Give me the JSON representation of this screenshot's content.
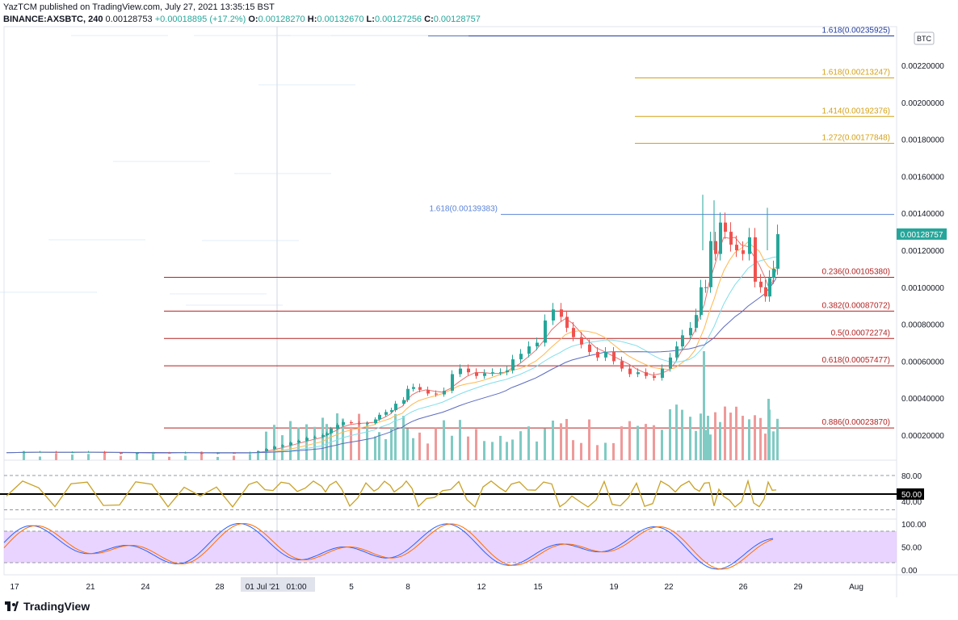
{
  "header": {
    "line1": "YazTCM published on TradingView.com, July 27, 2021 13:35:15 BST",
    "symbol": "BINANCE:AXSBTC, 240",
    "last": "0.00128753",
    "change": "+0.00018895 (+17.2%)",
    "o_label": "O:",
    "o": "0.00128270",
    "h_label": "H:",
    "h": "0.00132670",
    "l_label": "L:",
    "l": "0.00127256",
    "c_label": "C:",
    "c": "0.00128757"
  },
  "currency_badge": "BTC",
  "footer": {
    "logo_text": "TradingView"
  },
  "chart_data": [
    {
      "type": "candlestick",
      "title": "BINANCE:AXSBTC, 240",
      "y_axis_labels": [
        "0.00220000",
        "0.00200000",
        "0.00180000",
        "0.00160000",
        "0.00140000",
        "0.00120000",
        "0.00100000",
        "0.00080000",
        "0.00060000",
        "0.00040000",
        "0.00020000"
      ],
      "ylim": [
        0.0,
        0.00236
      ],
      "x_tick_labels": [
        "17",
        "21",
        "24",
        "28",
        "01 Jul '21",
        "01:00",
        "5",
        "8",
        "12",
        "15",
        "19",
        "22",
        "26",
        "29",
        "Aug"
      ],
      "last_price_label": "0.00128757",
      "fib_levels": [
        {
          "label": "1.618(0.00235925)",
          "value": 0.00235925,
          "color": "#1e3a9e"
        },
        {
          "label": "1.618(0.00213247)",
          "value": 0.00213247,
          "color": "#d4a017"
        },
        {
          "label": "1.414(0.00192376)",
          "value": 0.00192376,
          "color": "#d4a017"
        },
        {
          "label": "1.272(0.00177848)",
          "value": 0.00177848,
          "color": "#d4a017"
        },
        {
          "label": "1.618(0.00139383)",
          "value": 0.00139383,
          "color": "#5b84d6"
        },
        {
          "label": "0.236(0.00105380)",
          "value": 0.0010538,
          "color": "#b22222"
        },
        {
          "label": "0.382(0.00087072)",
          "value": 0.00087072,
          "color": "#b22222"
        },
        {
          "label": "0.5(0.00072274)",
          "value": 0.00072274,
          "color": "#b22222"
        },
        {
          "label": "0.618(0.00057477)",
          "value": 0.00057477,
          "color": "#b22222"
        },
        {
          "label": "0.886(0.00023870)",
          "value": 0.0002387,
          "color": "#b22222"
        }
      ],
      "price_path": [
        [
          0,
          0.000105
        ],
        [
          20,
          0.000108
        ],
        [
          40,
          0.00011
        ],
        [
          60,
          0.000106
        ],
        [
          80,
          0.000108
        ],
        [
          100,
          0.00011
        ],
        [
          120,
          0.000104
        ],
        [
          140,
          0.0001
        ],
        [
          160,
          0.000104
        ],
        [
          180,
          0.000105
        ],
        [
          200,
          0.000103
        ],
        [
          220,
          0.000106
        ],
        [
          240,
          0.0001
        ],
        [
          260,
          0.000104
        ],
        [
          280,
          0.000102
        ],
        [
          300,
          0.000106
        ],
        [
          310,
          0.000112
        ],
        [
          320,
          0.000125
        ],
        [
          330,
          0.000138
        ],
        [
          340,
          0.000145
        ],
        [
          350,
          0.00016
        ],
        [
          360,
          0.00017
        ],
        [
          370,
          0.000185
        ],
        [
          380,
          0.00019
        ],
        [
          390,
          0.0002
        ],
        [
          395,
          0.00021
        ],
        [
          400,
          0.000235
        ],
        [
          408,
          0.000255
        ],
        [
          415,
          0.00027
        ],
        [
          425,
          0.000265
        ],
        [
          435,
          0.000262
        ],
        [
          445,
          0.000265
        ],
        [
          455,
          0.000285
        ],
        [
          460,
          0.00031
        ],
        [
          468,
          0.000325
        ],
        [
          475,
          0.000335
        ],
        [
          480,
          0.00037
        ],
        [
          490,
          0.00039
        ],
        [
          495,
          0.00045
        ],
        [
          502,
          0.00046
        ],
        [
          510,
          0.000445
        ],
        [
          520,
          0.000425
        ],
        [
          530,
          0.00042
        ],
        [
          540,
          0.00044
        ],
        [
          550,
          0.00053
        ],
        [
          560,
          0.00056
        ],
        [
          570,
          0.00054
        ],
        [
          580,
          0.00052
        ],
        [
          590,
          0.000535
        ],
        [
          600,
          0.00054
        ],
        [
          610,
          0.00054
        ],
        [
          618,
          0.00055
        ],
        [
          625,
          0.00061
        ],
        [
          635,
          0.00064
        ],
        [
          645,
          0.00068
        ],
        [
          655,
          0.0007
        ],
        [
          665,
          0.00082
        ],
        [
          675,
          0.00088
        ],
        [
          685,
          0.00084
        ],
        [
          692,
          0.00078
        ],
        [
          700,
          0.00073
        ],
        [
          710,
          0.00069
        ],
        [
          720,
          0.00065
        ],
        [
          730,
          0.00062
        ],
        [
          740,
          0.00065
        ],
        [
          750,
          0.0006
        ],
        [
          760,
          0.00056
        ],
        [
          770,
          0.00053
        ],
        [
          780,
          0.00054
        ],
        [
          790,
          0.00052
        ],
        [
          800,
          0.00051
        ],
        [
          810,
          0.00056
        ],
        [
          820,
          0.00062
        ],
        [
          828,
          0.00068
        ],
        [
          835,
          0.00074
        ],
        [
          845,
          0.00078
        ],
        [
          852,
          0.00085
        ],
        [
          858,
          0.001
        ],
        [
          864,
          0.001
        ],
        [
          870,
          0.00125
        ],
        [
          876,
          0.00118
        ],
        [
          882,
          0.00135
        ],
        [
          888,
          0.0013
        ],
        [
          895,
          0.00123
        ],
        [
          902,
          0.0012
        ],
        [
          910,
          0.00118
        ],
        [
          918,
          0.00127
        ],
        [
          925,
          0.00103
        ],
        [
          932,
          0.001
        ],
        [
          938,
          0.00095
        ],
        [
          943,
          0.00105
        ],
        [
          948,
          0.0011
        ],
        [
          953,
          0.001287
        ]
      ],
      "indicators": {
        "rsi_levels": [
          "80.00",
          "50.00",
          "40.00"
        ],
        "stoch_levels": [
          "100.00",
          "50.00",
          "0.00"
        ]
      }
    }
  ]
}
